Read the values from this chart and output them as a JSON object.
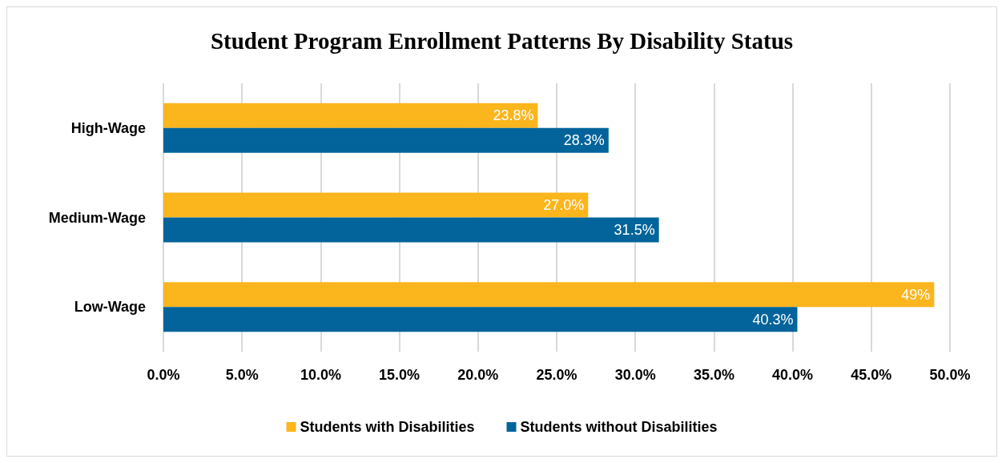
{
  "chart_data": {
    "type": "bar",
    "orientation": "horizontal",
    "title": "Student Program Enrollment Patterns By Disability Status",
    "categories": [
      "High-Wage",
      "Medium-Wage",
      "Low-Wage"
    ],
    "series": [
      {
        "name": "Students with Disabilities",
        "color": "#fbb51d",
        "values": [
          23.8,
          27.0,
          49
        ],
        "value_labels": [
          "23.8%",
          "27.0%",
          "49%"
        ]
      },
      {
        "name": "Students without Disabilities",
        "color": "#02649a",
        "values": [
          28.3,
          31.5,
          40.3
        ],
        "value_labels": [
          "28.3%",
          "31.5%",
          "40.3%"
        ]
      }
    ],
    "xlim": [
      0,
      50
    ],
    "xticks": [
      {
        "value": 0,
        "label": "0.0%"
      },
      {
        "value": 5,
        "label": "5.0%"
      },
      {
        "value": 10,
        "label": "10.0%"
      },
      {
        "value": 15,
        "label": "15.0%"
      },
      {
        "value": 20,
        "label": "20.0%"
      },
      {
        "value": 25,
        "label": "25.0%"
      },
      {
        "value": 30,
        "label": "30.0%"
      },
      {
        "value": 35,
        "label": "35.0%"
      },
      {
        "value": 40,
        "label": "40.0%"
      },
      {
        "value": 45,
        "label": "45.0%"
      },
      {
        "value": 50,
        "label": "50.0%"
      }
    ],
    "grid": "x",
    "legend": "bottom"
  }
}
